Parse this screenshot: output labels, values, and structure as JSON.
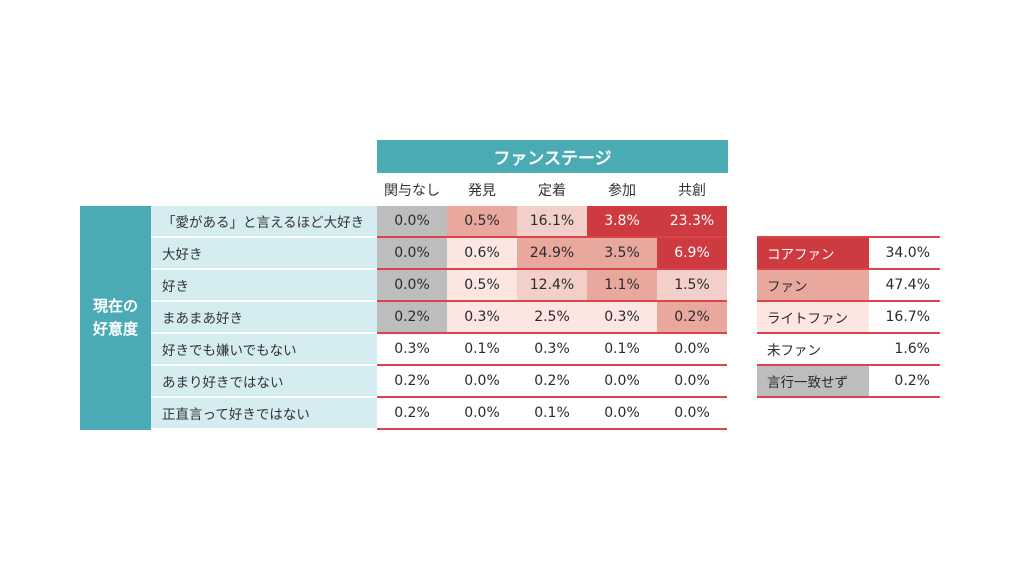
{
  "chart_data": {
    "type": "table",
    "column_group": "ファンステージ",
    "columns": [
      "関与なし",
      "発見",
      "定着",
      "参加",
      "共創"
    ],
    "row_group": "現在の好意度",
    "rows": [
      "「愛がある」と言えるほど大好き",
      "大好き",
      "好き",
      "まあまあ好き",
      "好きでも嫌いでもない",
      "あまり好きではない",
      "正直言って好きではない"
    ],
    "values": [
      [
        "0.0%",
        "0.5%",
        "16.1%",
        "3.8%",
        "23.3%"
      ],
      [
        "0.0%",
        "0.6%",
        "24.9%",
        "3.5%",
        "6.9%"
      ],
      [
        "0.0%",
        "0.5%",
        "12.4%",
        "1.1%",
        "1.5%"
      ],
      [
        "0.2%",
        "0.3%",
        "2.5%",
        "0.3%",
        "0.2%"
      ],
      [
        "0.3%",
        "0.1%",
        "0.3%",
        "0.1%",
        "0.0%"
      ],
      [
        "0.2%",
        "0.0%",
        "0.2%",
        "0.0%",
        "0.0%"
      ],
      [
        "0.2%",
        "0.0%",
        "0.1%",
        "0.0%",
        "0.0%"
      ]
    ],
    "cell_colors": [
      [
        "#bdbdbd",
        "#e9a89e",
        "#f2cfc8",
        "#cd3b40",
        "#cd3b40"
      ],
      [
        "#bdbdbd",
        "#fbe6e1",
        "#e9a89e",
        "#e9a89e",
        "#cd3b40"
      ],
      [
        "#bdbdbd",
        "#fbe6e1",
        "#f2cfc8",
        "#e9a89e",
        "#f2cfc8"
      ],
      [
        "#bdbdbd",
        "#fbe6e1",
        "#fbe6e1",
        "#fbe6e1",
        "#e9a89e"
      ],
      [
        "#ffffff",
        "#ffffff",
        "#ffffff",
        "#ffffff",
        "#ffffff"
      ],
      [
        "#ffffff",
        "#ffffff",
        "#ffffff",
        "#ffffff",
        "#ffffff"
      ],
      [
        "#ffffff",
        "#ffffff",
        "#ffffff",
        "#ffffff",
        "#ffffff"
      ]
    ],
    "summary": [
      {
        "label": "コアファン",
        "value": "34.0%",
        "color": "#cd3b40"
      },
      {
        "label": "ファン",
        "value": "47.4%",
        "color": "#e9a89e"
      },
      {
        "label": "ライトファン",
        "value": "16.7%",
        "color": "#fbe6e1"
      },
      {
        "label": "未ファン",
        "value": "1.6%",
        "color": "#ffffff"
      },
      {
        "label": "言行一致せず",
        "value": "0.2%",
        "color": "#bdbdbd"
      }
    ]
  },
  "colors": {
    "header_teal": "#4aabb5",
    "row_label_bg": "#d5edf0",
    "rule_red": "#d9454a",
    "dark_red_text": "#ffffff"
  }
}
